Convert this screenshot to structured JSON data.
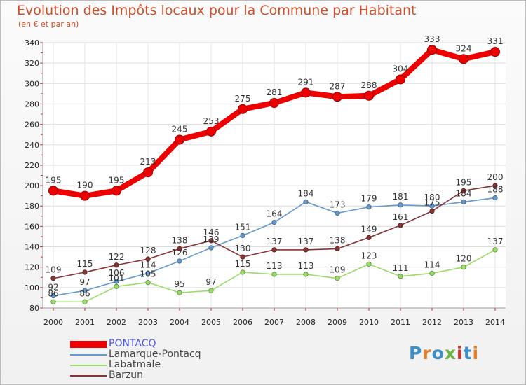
{
  "title": "Evolution des Impôts locaux pour la Commune par Habitant",
  "subtitle": "(en € et par an)",
  "logo": {
    "text": "Proxiti",
    "colors": [
      "#3d8fcc",
      "#e57f2a",
      "#3d8fcc",
      "#6cb43f",
      "#d2312c",
      "#3d8fcc",
      "#e57f2a"
    ]
  },
  "chart_data": {
    "type": "line",
    "x": [
      2000,
      2001,
      2002,
      2003,
      2004,
      2005,
      2006,
      2007,
      2008,
      2009,
      2010,
      2011,
      2012,
      2013,
      2014
    ],
    "ylim": [
      80,
      340
    ],
    "yticks": [
      80,
      100,
      120,
      140,
      160,
      180,
      200,
      220,
      240,
      260,
      280,
      300,
      320,
      340
    ],
    "grid": true,
    "series": [
      {
        "name": "PONTACQ",
        "color": "#ee0000",
        "values": [
          195,
          190,
          195,
          213,
          245,
          253,
          275,
          281,
          291,
          287,
          288,
          304,
          333,
          324,
          331
        ]
      },
      {
        "name": "Lamarque-Pontacq",
        "color": "#6699cc",
        "values": [
          92,
          97,
          106,
          114,
          126,
          139,
          151,
          164,
          184,
          173,
          179,
          181,
          180,
          184,
          188
        ]
      },
      {
        "name": "Labatmale",
        "color": "#99dd66",
        "values": [
          86,
          86,
          101,
          105,
          95,
          97,
          115,
          113,
          113,
          109,
          123,
          111,
          114,
          120,
          137
        ]
      },
      {
        "name": "Barzun",
        "color": "#883333",
        "values": [
          109,
          115,
          122,
          128,
          138,
          146,
          130,
          137,
          137,
          138,
          149,
          161,
          175,
          195,
          200
        ]
      }
    ]
  }
}
